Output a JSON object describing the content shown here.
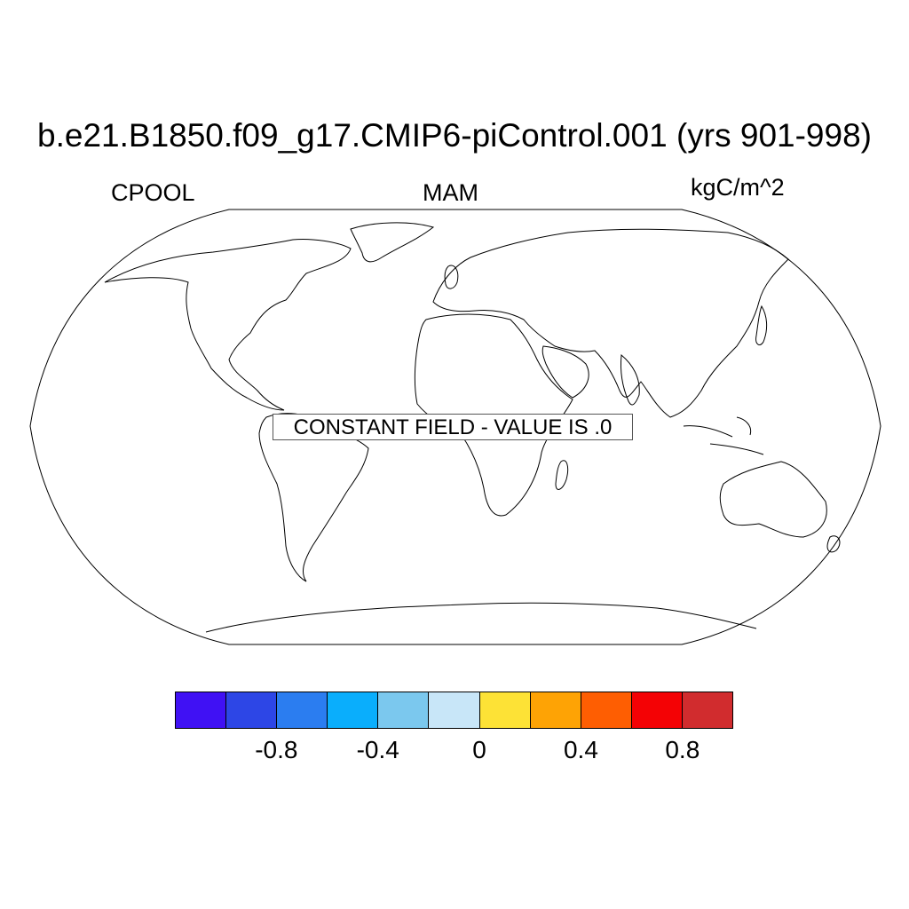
{
  "title": "b.e21.B1850.f09_g17.CMIP6-piControl.001 (yrs 901-998)",
  "subtitle_left": "CPOOL",
  "subtitle_center": "MAM",
  "subtitle_right": "kgC/m^2",
  "notice": "CONSTANT FIELD - VALUE IS .0",
  "map": {
    "projection": "robinson",
    "coastlines": true
  },
  "colorbar": {
    "colors": [
      "#4011f4",
      "#2d46e6",
      "#2b7df0",
      "#0aaefc",
      "#7bc8ee",
      "#c8e6f8",
      "#fde236",
      "#fea305",
      "#fe5e02",
      "#f40205",
      "#d12c2e"
    ],
    "tick_labels": [
      "-0.8",
      "-0.4",
      "0",
      "0.4",
      "0.8"
    ],
    "tick_values": [
      -0.8,
      -0.4,
      0,
      0.4,
      0.8
    ]
  }
}
